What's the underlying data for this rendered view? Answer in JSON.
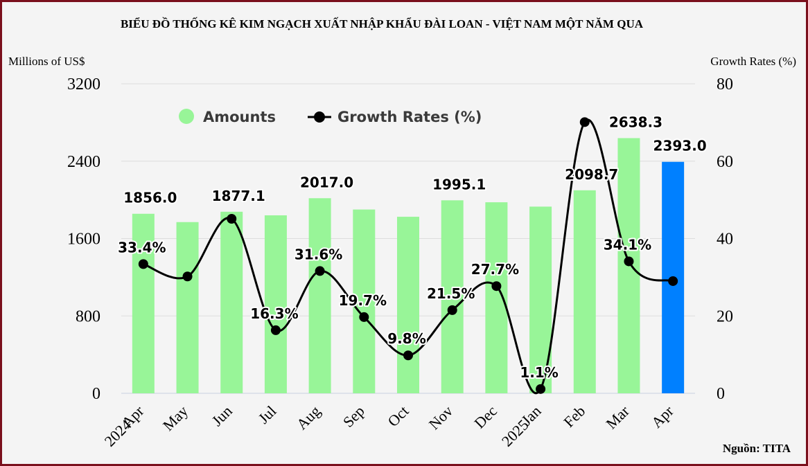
{
  "chart_data": {
    "type": "bar+line",
    "title": "BIỂU ĐỒ THỐNG KÊ KIM NGẠCH XUẤT NHẬP KHẨU ĐÀI LOAN - VIỆT NAM MỘT NĂM QUA",
    "ylabel_left": "Millions of US$",
    "ylabel_right": "Growth Rates (%)",
    "source": "Nguồn: TITA",
    "categories": [
      "Apr\n2024",
      "May",
      "Jun",
      "Jul",
      "Aug",
      "Sep",
      "Oct",
      "Nov",
      "Dec",
      "Jan\n2025",
      "Feb",
      "Mar",
      "Apr"
    ],
    "ylim_left": [
      0,
      3200
    ],
    "yticks_left": [
      0,
      800,
      1600,
      2400,
      3200
    ],
    "ylim_right": [
      0,
      80
    ],
    "yticks_right": [
      0,
      20,
      40,
      60,
      80
    ],
    "legend": {
      "position": "top-left",
      "entries": [
        "Amounts",
        "Growth Rates (%)"
      ]
    },
    "grid": true,
    "series": [
      {
        "name": "Amounts",
        "type": "bar",
        "color": "#98f598",
        "highlight_color": "#0080ff",
        "highlight_index": 12,
        "values": [
          1856.0,
          1770,
          1877.1,
          1840,
          2017.0,
          1900,
          1825,
          1995.1,
          1975,
          1930,
          2098.7,
          2638.3,
          2393.0
        ],
        "labels": [
          "1856.0",
          "",
          "1877.1",
          "",
          "2017.0",
          "",
          "",
          "1995.1",
          "",
          "",
          "2098.7",
          "2638.3",
          "2393.0"
        ]
      },
      {
        "name": "Growth Rates (%)",
        "type": "line",
        "color": "#000000",
        "values": [
          33.4,
          30.2,
          45.1,
          16.3,
          31.6,
          19.7,
          9.8,
          21.5,
          27.7,
          1.1,
          70.1,
          34.1,
          29.0
        ],
        "labels": [
          "33.4%",
          "",
          "",
          "16.3%",
          "31.6%",
          "19.7%",
          "9.8%",
          "21.5%",
          "27.7%",
          "1.1%",
          "",
          "34.1%",
          ""
        ]
      }
    ]
  }
}
